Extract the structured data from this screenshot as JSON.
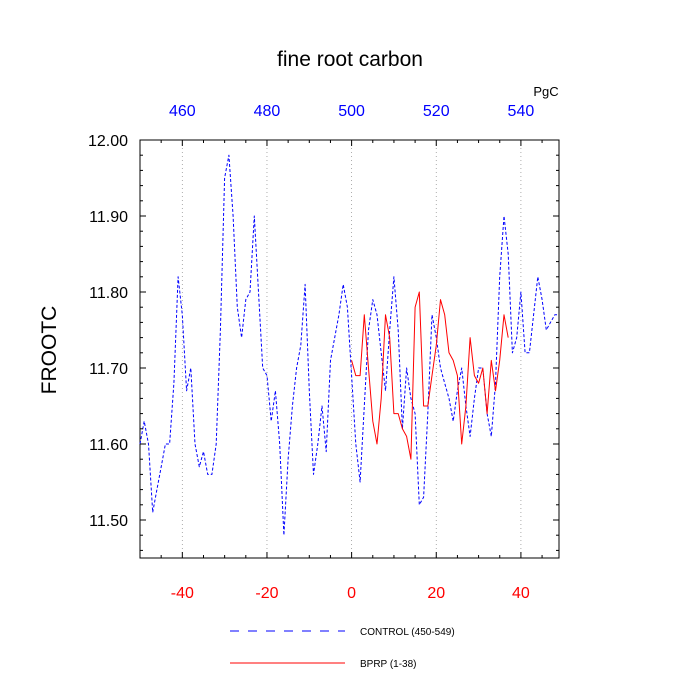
{
  "chart_data": {
    "type": "line",
    "title": "fine root carbon",
    "ylabel": "FROOTC",
    "units": "PgC",
    "xlim": [
      -50,
      49
    ],
    "ylim": [
      11.45,
      12.0
    ],
    "bottom_axis": {
      "ticks": [
        -40,
        -20,
        0,
        20,
        40
      ],
      "labels": [
        "-40",
        "-20",
        "0",
        "20",
        "40"
      ]
    },
    "top_axis": {
      "ticks": [
        -40,
        -20,
        0,
        20,
        40
      ],
      "labels": [
        "460",
        "480",
        "500",
        "520",
        "540"
      ]
    },
    "y_ticks": [
      11.5,
      11.6,
      11.7,
      11.8,
      11.9,
      12.0
    ],
    "y_tick_labels": [
      "11.50",
      "11.60",
      "11.70",
      "11.80",
      "11.90",
      "12.00"
    ],
    "vertical_gridlines": [
      -40,
      -20,
      0,
      20,
      40
    ],
    "colors": {
      "control": "#0000ff",
      "bprp": "#ff0000",
      "top_axis": "#0000ff",
      "bottom_axis": "#ff0000"
    },
    "series": [
      {
        "name": "CONTROL (450-549)",
        "style": "dashed",
        "color": "#0000ff",
        "x": [
          -50,
          -49,
          -48,
          -47,
          -46,
          -45,
          -44,
          -43,
          -42,
          -41,
          -40,
          -39,
          -38,
          -37,
          -36,
          -35,
          -34,
          -33,
          -32,
          -31,
          -30,
          -29,
          -28,
          -27,
          -26,
          -25,
          -24,
          -23,
          -22,
          -21,
          -20,
          -19,
          -18,
          -17,
          -16,
          -15,
          -14,
          -13,
          -12,
          -11,
          -10,
          -9,
          -8,
          -7,
          -6,
          -5,
          -4,
          -3,
          -2,
          -1,
          0,
          1,
          2,
          3,
          4,
          5,
          6,
          7,
          8,
          9,
          10,
          11,
          12,
          13,
          14,
          15,
          16,
          17,
          18,
          19,
          20,
          21,
          22,
          23,
          24,
          25,
          26,
          27,
          28,
          29,
          30,
          31,
          32,
          33,
          34,
          35,
          36,
          37,
          38,
          39,
          40,
          41,
          42,
          43,
          44,
          45,
          46,
          47,
          48,
          49
        ],
        "y": [
          11.6,
          11.63,
          11.6,
          11.51,
          11.54,
          11.57,
          11.6,
          11.6,
          11.68,
          11.82,
          11.77,
          11.67,
          11.7,
          11.6,
          11.57,
          11.59,
          11.56,
          11.56,
          11.6,
          11.75,
          11.95,
          11.98,
          11.9,
          11.78,
          11.74,
          11.79,
          11.8,
          11.9,
          11.8,
          11.7,
          11.69,
          11.63,
          11.67,
          11.6,
          11.48,
          11.58,
          11.65,
          11.7,
          11.73,
          11.81,
          11.67,
          11.56,
          11.6,
          11.65,
          11.59,
          11.71,
          11.74,
          11.77,
          11.81,
          11.78,
          11.69,
          11.6,
          11.55,
          11.65,
          11.75,
          11.79,
          11.77,
          11.72,
          11.67,
          11.75,
          11.82,
          11.75,
          11.62,
          11.7,
          11.66,
          11.64,
          11.52,
          11.53,
          11.64,
          11.77,
          11.74,
          11.7,
          11.68,
          11.66,
          11.63,
          11.67,
          11.7,
          11.65,
          11.61,
          11.66,
          11.7,
          11.7,
          11.64,
          11.61,
          11.68,
          11.82,
          11.9,
          11.85,
          11.72,
          11.74,
          11.8,
          11.72,
          11.72,
          11.77,
          11.82,
          11.79,
          11.75,
          11.76,
          11.77,
          11.77
        ]
      },
      {
        "name": "BPRP (1-38)",
        "style": "solid",
        "color": "#ff0000",
        "x": [
          0,
          1,
          2,
          3,
          4,
          5,
          6,
          7,
          8,
          9,
          10,
          11,
          12,
          13,
          14,
          15,
          16,
          17,
          18,
          19,
          20,
          21,
          22,
          23,
          24,
          25,
          26,
          27,
          28,
          29,
          30,
          31,
          32,
          33,
          34,
          35,
          36,
          37
        ],
        "y": [
          11.71,
          11.69,
          11.69,
          11.77,
          11.7,
          11.63,
          11.6,
          11.66,
          11.77,
          11.74,
          11.64,
          11.64,
          11.62,
          11.61,
          11.58,
          11.78,
          11.8,
          11.65,
          11.65,
          11.69,
          11.73,
          11.79,
          11.77,
          11.72,
          11.71,
          11.69,
          11.6,
          11.65,
          11.74,
          11.69,
          11.68,
          11.7,
          11.64,
          11.71,
          11.67,
          11.71,
          11.77,
          11.74
        ]
      }
    ],
    "legend": {
      "placement": "bottom",
      "entries": [
        "CONTROL (450-549)",
        "BPRP (1-38)"
      ]
    }
  }
}
